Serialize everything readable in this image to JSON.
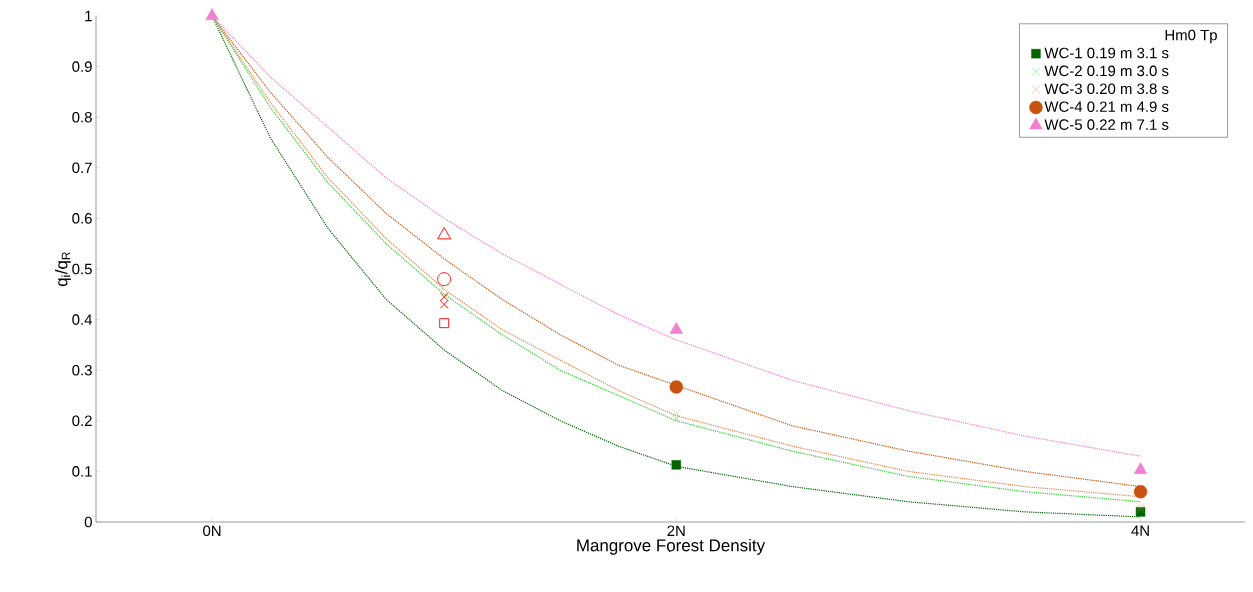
{
  "chart_data": {
    "type": "scatter",
    "xlabel": "Mangrove Forest Density",
    "ylabel": "q$_{i}$/q$_{R}$",
    "legend_title": "Hm0    Tp",
    "xlim": [
      -0.5,
      4.45
    ],
    "ylim": [
      0,
      1
    ],
    "xticks": [
      {
        "value": 0,
        "label": "0N"
      },
      {
        "value": 2,
        "label": "2N"
      },
      {
        "value": 4,
        "label": "4N"
      }
    ],
    "yticks": [
      0,
      0.1,
      0.2,
      0.3,
      0.4,
      0.5,
      0.6,
      0.7,
      0.8,
      0.9,
      1
    ],
    "grid": false,
    "legend": "top right",
    "series": [
      {
        "name": "WC-1  0.19 m  3.1 s",
        "marker": "square",
        "color": "#006400",
        "x": [
          2,
          4
        ],
        "values": [
          0.113,
          0.02
        ]
      },
      {
        "name": "WC-2  0.19 m  3.0 s",
        "marker": "cross",
        "color": "#33cc33",
        "x": [
          2,
          4
        ],
        "values": [
          0.205,
          0.025
        ]
      },
      {
        "name": "WC-3  0.20 m  3.8 s",
        "marker": "cross",
        "color": "#f08040",
        "x": [
          2,
          4
        ],
        "values": [
          0.215,
          0.03
        ]
      },
      {
        "name": "WC-4  0.21 m  4.9 s",
        "marker": "circle",
        "color": "#c8520f",
        "x": [
          2,
          4
        ],
        "values": [
          0.267,
          0.06
        ]
      },
      {
        "name": "WC-5  0.22 m  7.1 s",
        "marker": "triangle",
        "color": "#f080d0",
        "x": [
          0,
          2,
          4
        ],
        "values": [
          1,
          0.38,
          0.103
        ]
      },
      {
        "marker": "square",
        "color": "#ff0000",
        "x": [
          1
        ],
        "values": [
          0.393
        ]
      },
      {
        "marker": "cross",
        "color": "#ff0000",
        "x": [
          1
        ],
        "values": [
          0.43
        ]
      },
      {
        "marker": "cross",
        "color": "#ff0000",
        "x": [
          1
        ],
        "values": [
          0.445
        ]
      },
      {
        "marker": "circle",
        "color": "#ff0000",
        "x": [
          1
        ],
        "values": [
          0.48
        ]
      },
      {
        "marker": "triangle",
        "color": "#ff0000",
        "x": [
          1
        ],
        "values": [
          0.567
        ]
      },
      {
        "type": "line",
        "line_style": "dotted",
        "marker": "none",
        "color": "#006400",
        "x": [
          0,
          0.25,
          0.5,
          0.75,
          1,
          1.25,
          1.5,
          1.75,
          2,
          2.5,
          3,
          3.5,
          4
        ],
        "values": [
          1,
          0.76,
          0.58,
          0.44,
          0.34,
          0.26,
          0.2,
          0.15,
          0.11,
          0.07,
          0.04,
          0.02,
          0.01
        ]
      },
      {
        "type": "line",
        "line_style": "dotted",
        "marker": "none",
        "color": "#33cc33",
        "x": [
          0,
          0.25,
          0.5,
          0.75,
          1,
          1.25,
          1.5,
          1.75,
          2,
          2.5,
          3,
          3.5,
          4
        ],
        "values": [
          1,
          0.82,
          0.67,
          0.55,
          0.45,
          0.37,
          0.3,
          0.25,
          0.2,
          0.14,
          0.09,
          0.06,
          0.04
        ]
      },
      {
        "type": "line",
        "line_style": "dotted",
        "marker": "none",
        "color": "#f08040",
        "x": [
          0,
          0.25,
          0.5,
          0.75,
          1,
          1.25,
          1.5,
          1.75,
          2,
          2.5,
          3,
          3.5,
          4
        ],
        "values": [
          1,
          0.83,
          0.68,
          0.56,
          0.46,
          0.38,
          0.32,
          0.26,
          0.21,
          0.15,
          0.1,
          0.07,
          0.05
        ]
      },
      {
        "type": "line",
        "line_style": "dotted",
        "marker": "none",
        "color": "#c8520f",
        "x": [
          0,
          0.25,
          0.5,
          0.75,
          1,
          1.25,
          1.5,
          1.75,
          2,
          2.5,
          3,
          3.5,
          4
        ],
        "values": [
          1,
          0.85,
          0.72,
          0.61,
          0.52,
          0.44,
          0.37,
          0.31,
          0.27,
          0.19,
          0.14,
          0.1,
          0.07
        ]
      },
      {
        "type": "line",
        "line_style": "dotted",
        "marker": "none",
        "color": "#f080d0",
        "x": [
          0,
          0.25,
          0.5,
          0.75,
          1,
          1.25,
          1.5,
          1.75,
          2,
          2.5,
          3,
          3.5,
          4
        ],
        "values": [
          1,
          0.88,
          0.78,
          0.68,
          0.6,
          0.53,
          0.47,
          0.41,
          0.36,
          0.28,
          0.22,
          0.17,
          0.13
        ]
      }
    ]
  }
}
